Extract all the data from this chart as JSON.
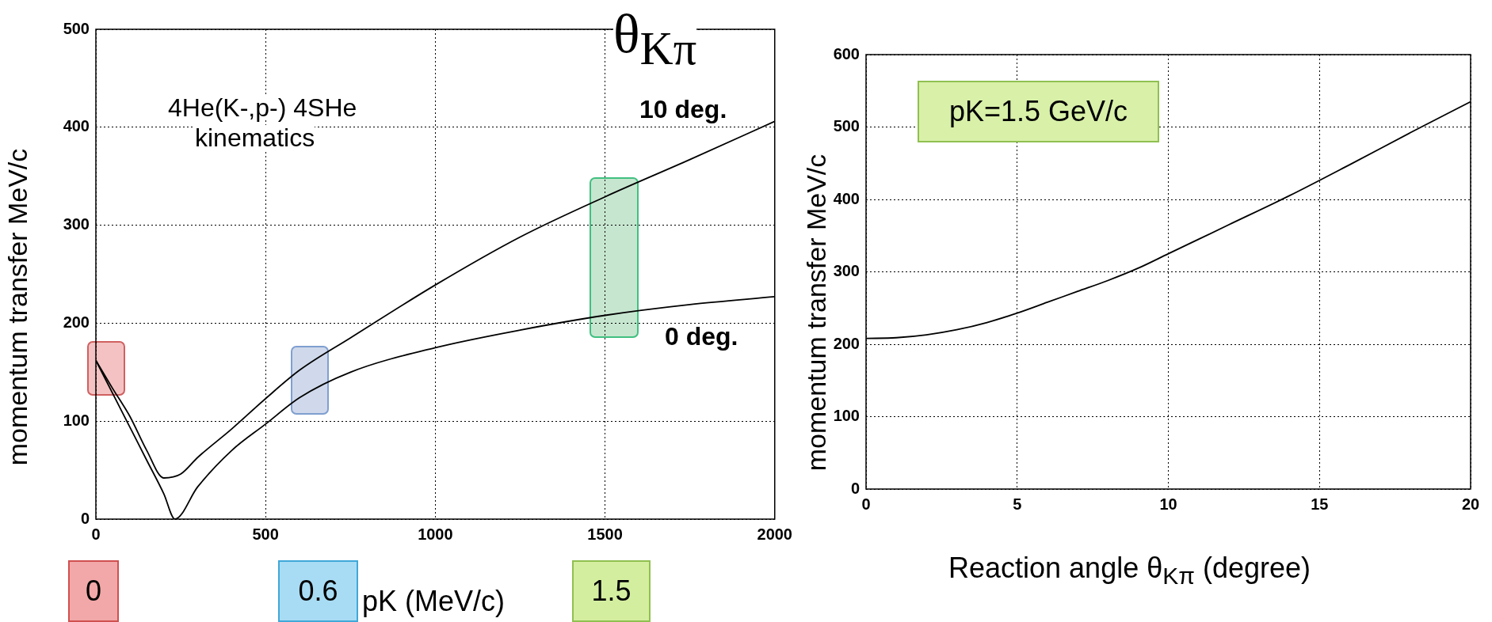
{
  "chart_data": [
    {
      "type": "line",
      "xlabel": "pK  (MeV/c)",
      "ylabel": "momentum transfer MeV/c",
      "xlim": [
        0,
        2000
      ],
      "xticks": [
        0,
        500,
        1000,
        1500,
        2000
      ],
      "ylim": [
        0,
        500
      ],
      "yticks": [
        0,
        100,
        200,
        300,
        400,
        500
      ],
      "grid": true,
      "legend": false,
      "marker": "none",
      "line_style": "solid",
      "annotations": [
        "θ$_{Kπ}$",
        "4He(K-,p-) 4SHe",
        "kinematics",
        "0",
        "0.6",
        "1.5"
      ],
      "series": [
        {
          "name": "10 deg.",
          "color": "#000000",
          "x": [
            0,
            50,
            100,
            150,
            200,
            250,
            300,
            400,
            500,
            600,
            750,
            1000,
            1250,
            1500,
            1750,
            2000
          ],
          "values": [
            162,
            133,
            105,
            70,
            42,
            46,
            63,
            92,
            123,
            152,
            185,
            239,
            288,
            329,
            367,
            406
          ]
        },
        {
          "name": "0 deg.",
          "color": "#000000",
          "x": [
            0,
            50,
            100,
            150,
            200,
            233,
            300,
            400,
            500,
            600,
            750,
            1000,
            1250,
            1500,
            1750,
            2000
          ],
          "values": [
            162,
            128,
            94,
            60,
            26,
            0,
            33,
            70,
            97,
            124,
            150,
            175,
            193,
            208,
            219,
            227
          ]
        }
      ]
    },
    {
      "type": "line",
      "xlabel": "Reaction angle θ$_{Kπ}$ (degree)",
      "ylabel": "momentum transfer MeV/c",
      "xlim": [
        0,
        20
      ],
      "xticks": [
        0,
        5,
        10,
        15,
        20
      ],
      "ylim": [
        0,
        600
      ],
      "yticks": [
        0,
        100,
        200,
        300,
        400,
        500,
        600
      ],
      "grid": true,
      "legend": false,
      "marker": "none",
      "line_style": "solid",
      "annotations": [
        "pK=1.5 GeV/c"
      ],
      "series": [
        {
          "color": "#000000",
          "x": [
            0,
            1,
            2,
            3,
            4,
            5,
            6,
            7,
            8,
            9,
            10,
            12,
            14,
            16,
            18,
            20
          ],
          "values": [
            208,
            209,
            213,
            220,
            230,
            243,
            258,
            273,
            288,
            305,
            325,
            365,
            405,
            448,
            492,
            535
          ]
        }
      ]
    }
  ]
}
